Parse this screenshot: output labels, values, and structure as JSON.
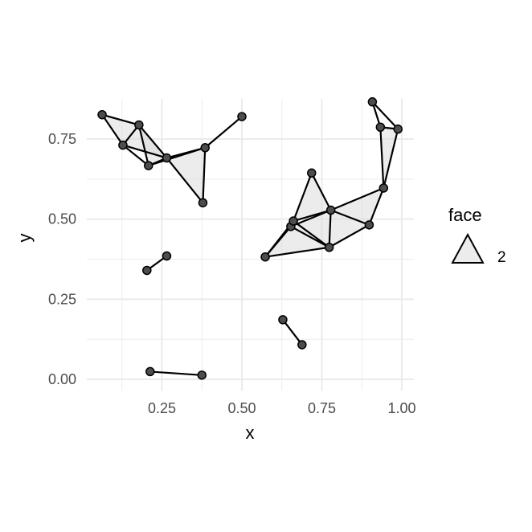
{
  "chart_data": {
    "type": "scatter",
    "subtype": "network-triangulation",
    "title": "",
    "xlabel": "x",
    "ylabel": "y",
    "xlim": [
      0.0,
      1.0
    ],
    "ylim": [
      0.0,
      0.875
    ],
    "xticks": [
      0.25,
      0.5,
      0.75,
      1.0
    ],
    "xtick_labels": [
      "0.25",
      "0.50",
      "0.75",
      "1.00"
    ],
    "yticks": [
      0.0,
      0.25,
      0.5,
      0.75
    ],
    "ytick_labels": [
      "0.00",
      "0.25",
      "0.50",
      "0.75"
    ],
    "grid": true,
    "legend": {
      "title": "face",
      "position": "right",
      "items": [
        {
          "symbol": "triangle",
          "label": "2"
        }
      ]
    },
    "colors": {
      "face_fill": "#d9d9d9",
      "edge": "#000000",
      "point_fill": "#4d4d4d",
      "grid": "#ebebeb",
      "axis_text": "#4d4d4d"
    },
    "points": [
      {
        "id": "A",
        "x": 0.063,
        "y": 0.826
      },
      {
        "id": "B",
        "x": 0.178,
        "y": 0.794
      },
      {
        "id": "C",
        "x": 0.128,
        "y": 0.731
      },
      {
        "id": "D",
        "x": 0.208,
        "y": 0.667
      },
      {
        "id": "E",
        "x": 0.265,
        "y": 0.691
      },
      {
        "id": "F",
        "x": 0.385,
        "y": 0.723
      },
      {
        "id": "G",
        "x": 0.378,
        "y": 0.551
      },
      {
        "id": "H",
        "x": 0.5,
        "y": 0.82
      },
      {
        "id": "I",
        "x": 0.203,
        "y": 0.34
      },
      {
        "id": "J",
        "x": 0.265,
        "y": 0.385
      },
      {
        "id": "K",
        "x": 0.213,
        "y": 0.024
      },
      {
        "id": "L",
        "x": 0.375,
        "y": 0.013
      },
      {
        "id": "M",
        "x": 0.628,
        "y": 0.186
      },
      {
        "id": "N",
        "x": 0.688,
        "y": 0.108
      },
      {
        "id": "O",
        "x": 0.573,
        "y": 0.382
      },
      {
        "id": "P",
        "x": 0.653,
        "y": 0.477
      },
      {
        "id": "Q",
        "x": 0.661,
        "y": 0.494
      },
      {
        "id": "R",
        "x": 0.718,
        "y": 0.644
      },
      {
        "id": "S",
        "x": 0.773,
        "y": 0.412
      },
      {
        "id": "T",
        "x": 0.778,
        "y": 0.528
      },
      {
        "id": "U",
        "x": 0.898,
        "y": 0.482
      },
      {
        "id": "V",
        "x": 0.943,
        "y": 0.597
      },
      {
        "id": "W",
        "x": 0.908,
        "y": 0.866
      },
      {
        "id": "X",
        "x": 0.933,
        "y": 0.787
      },
      {
        "id": "Y",
        "x": 0.988,
        "y": 0.781
      }
    ],
    "faces": [
      [
        "A",
        "B",
        "C"
      ],
      [
        "B",
        "C",
        "E"
      ],
      [
        "B",
        "D",
        "E"
      ],
      [
        "E",
        "F",
        "G"
      ],
      [
        "O",
        "P",
        "S"
      ],
      [
        "P",
        "S",
        "T"
      ],
      [
        "Q",
        "R",
        "T"
      ],
      [
        "S",
        "T",
        "U"
      ],
      [
        "T",
        "U",
        "V"
      ],
      [
        "X",
        "Y",
        "V"
      ]
    ],
    "edges": [
      [
        "A",
        "B"
      ],
      [
        "A",
        "C"
      ],
      [
        "B",
        "C"
      ],
      [
        "B",
        "E"
      ],
      [
        "C",
        "E"
      ],
      [
        "B",
        "D"
      ],
      [
        "C",
        "D"
      ],
      [
        "D",
        "E"
      ],
      [
        "E",
        "F"
      ],
      [
        "D",
        "F"
      ],
      [
        "E",
        "G"
      ],
      [
        "F",
        "G"
      ],
      [
        "F",
        "H"
      ],
      [
        "I",
        "J"
      ],
      [
        "K",
        "L"
      ],
      [
        "M",
        "N"
      ],
      [
        "O",
        "P"
      ],
      [
        "O",
        "Q"
      ],
      [
        "O",
        "S"
      ],
      [
        "P",
        "S"
      ],
      [
        "P",
        "T"
      ],
      [
        "Q",
        "R"
      ],
      [
        "Q",
        "T"
      ],
      [
        "Q",
        "S"
      ],
      [
        "R",
        "T"
      ],
      [
        "S",
        "T"
      ],
      [
        "T",
        "U"
      ],
      [
        "S",
        "U"
      ],
      [
        "T",
        "V"
      ],
      [
        "U",
        "V"
      ],
      [
        "V",
        "X"
      ],
      [
        "V",
        "Y"
      ],
      [
        "X",
        "Y"
      ],
      [
        "W",
        "X"
      ],
      [
        "W",
        "Y"
      ]
    ]
  }
}
